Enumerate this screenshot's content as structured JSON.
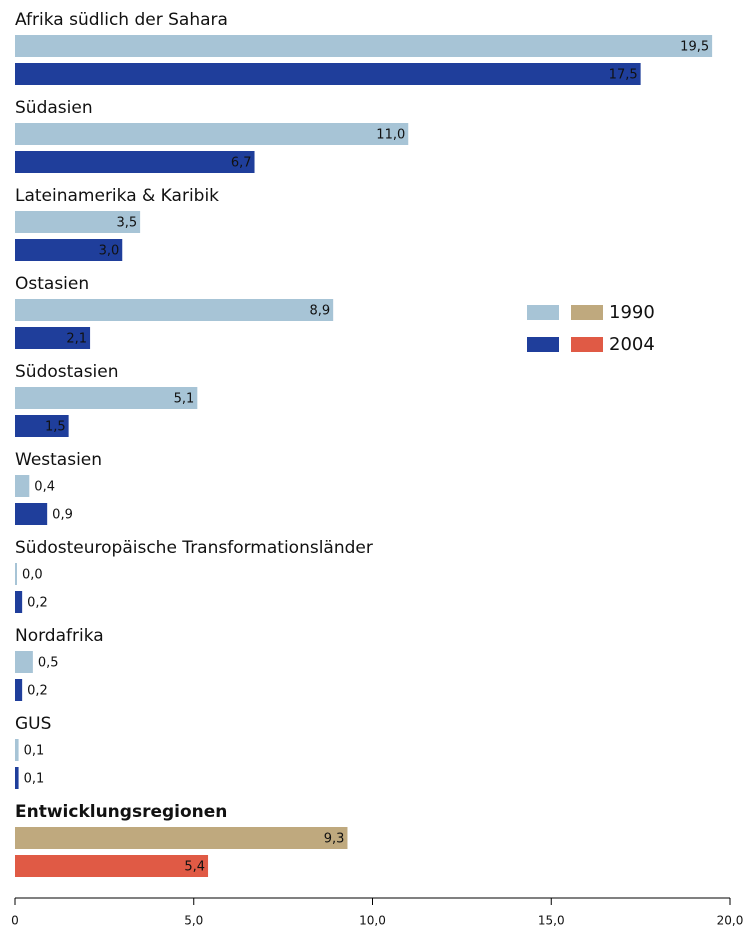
{
  "chart_data": {
    "type": "hbar",
    "categories": [
      "Afrika südlich der Sahara",
      "Südasien",
      "Lateinamerika & Karibik",
      "Ostasien",
      "Südostasien",
      "Westasien",
      "Südosteuropäische Transformationsländer",
      "Nordafrika",
      "GUS",
      "Entwicklungsregionen"
    ],
    "category_font_weight": [
      "normal",
      "normal",
      "normal",
      "normal",
      "normal",
      "normal",
      "normal",
      "normal",
      "normal",
      "bold"
    ],
    "series": [
      {
        "name": "1990",
        "color": "#a7c4d6",
        "colors": [
          "#a7c4d6",
          "#a7c4d6",
          "#a7c4d6",
          "#a7c4d6",
          "#a7c4d6",
          "#a7c4d6",
          "#a7c4d6",
          "#a7c4d6",
          "#a7c4d6",
          "#bfa97e"
        ],
        "label_colors": [
          "#333333",
          "#333333",
          "#333333",
          "#333333",
          "#333333",
          "#333333",
          "#333333",
          "#333333",
          "#333333",
          "#333333"
        ],
        "values": [
          19.5,
          11.0,
          3.5,
          8.9,
          5.1,
          0.4,
          0.0,
          0.5,
          0.1,
          9.3
        ],
        "value_labels": [
          "19,5",
          "11,0",
          "3,5",
          "8,9",
          "5,1",
          "0,4",
          "0,0",
          "0,5",
          "0,1",
          "9,3"
        ]
      },
      {
        "name": "2004",
        "color": "#1f3e9b",
        "colors": [
          "#1f3e9b",
          "#1f3e9b",
          "#1f3e9b",
          "#1f3e9b",
          "#1f3e9b",
          "#1f3e9b",
          "#1f3e9b",
          "#1f3e9b",
          "#1f3e9b",
          "#e05a45"
        ],
        "label_colors": [
          "#ffffff",
          "#ffffff",
          "#ffffff",
          "#ffffff",
          "#ffffff",
          "#ffffff",
          "#ffffff",
          "#ffffff",
          "#ffffff",
          "#ffffff"
        ],
        "values": [
          17.5,
          6.7,
          3.0,
          2.1,
          1.5,
          0.9,
          0.2,
          0.2,
          0.1,
          5.4
        ],
        "value_labels": [
          "17,5",
          "6,7",
          "3,0",
          "2,1",
          "1,5",
          "0,9",
          "0,2",
          "0,2",
          "0,1",
          "5,4"
        ]
      }
    ],
    "xlim": [
      0,
      20
    ],
    "xticks": [
      0,
      {
        "value": 5,
        "label": "5,0"
      },
      {
        "value": 10,
        "label": "10,0"
      },
      {
        "value": 15,
        "label": "15,0"
      },
      {
        "value": 20,
        "label": "20,0"
      }
    ],
    "legend": "right"
  }
}
